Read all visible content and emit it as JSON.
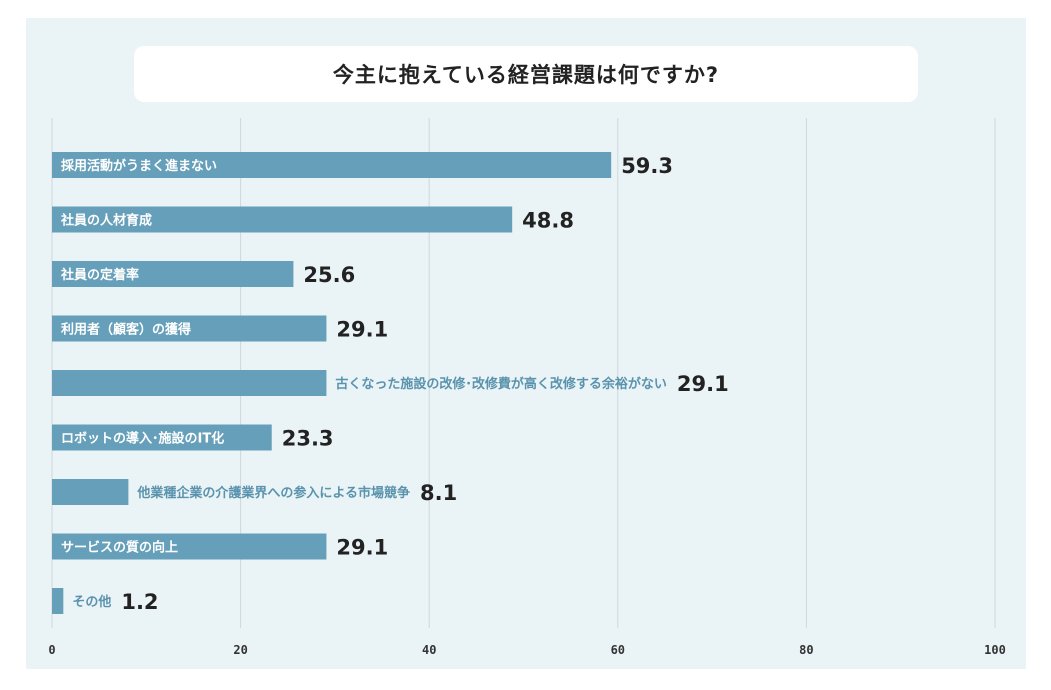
{
  "chart_data": {
    "type": "bar",
    "orientation": "horizontal",
    "title": "今主に抱えている経営課題は何ですか?",
    "categories": [
      "採用活動がうまく進まない",
      "社員の人材育成",
      "社員の定着率",
      "利用者（顧客）の獲得",
      "古くなった施設の改修･改修費が高く改修する余裕がない",
      "ロボットの導入･施設のIT化",
      "他業種企業の介護業界への参入による市場競争",
      "サービスの質の向上",
      "その他"
    ],
    "values": [
      59.3,
      48.8,
      25.6,
      29.1,
      29.1,
      23.3,
      8.1,
      29.1,
      1.2
    ],
    "value_labels": [
      "59.3",
      "48.8",
      "25.6",
      "29.1",
      "29.1",
      "23.3",
      "8.1",
      "29.1",
      "1.2"
    ],
    "xlim": [
      0,
      100
    ],
    "xticks": [
      "0",
      "20",
      "40",
      "60",
      "80",
      "100"
    ],
    "grid": true,
    "bar_color": "#669fb9",
    "label_inside_color": "#ffffff",
    "label_outside_color": "#5a93ad",
    "background_color": "#eaf3f6"
  }
}
